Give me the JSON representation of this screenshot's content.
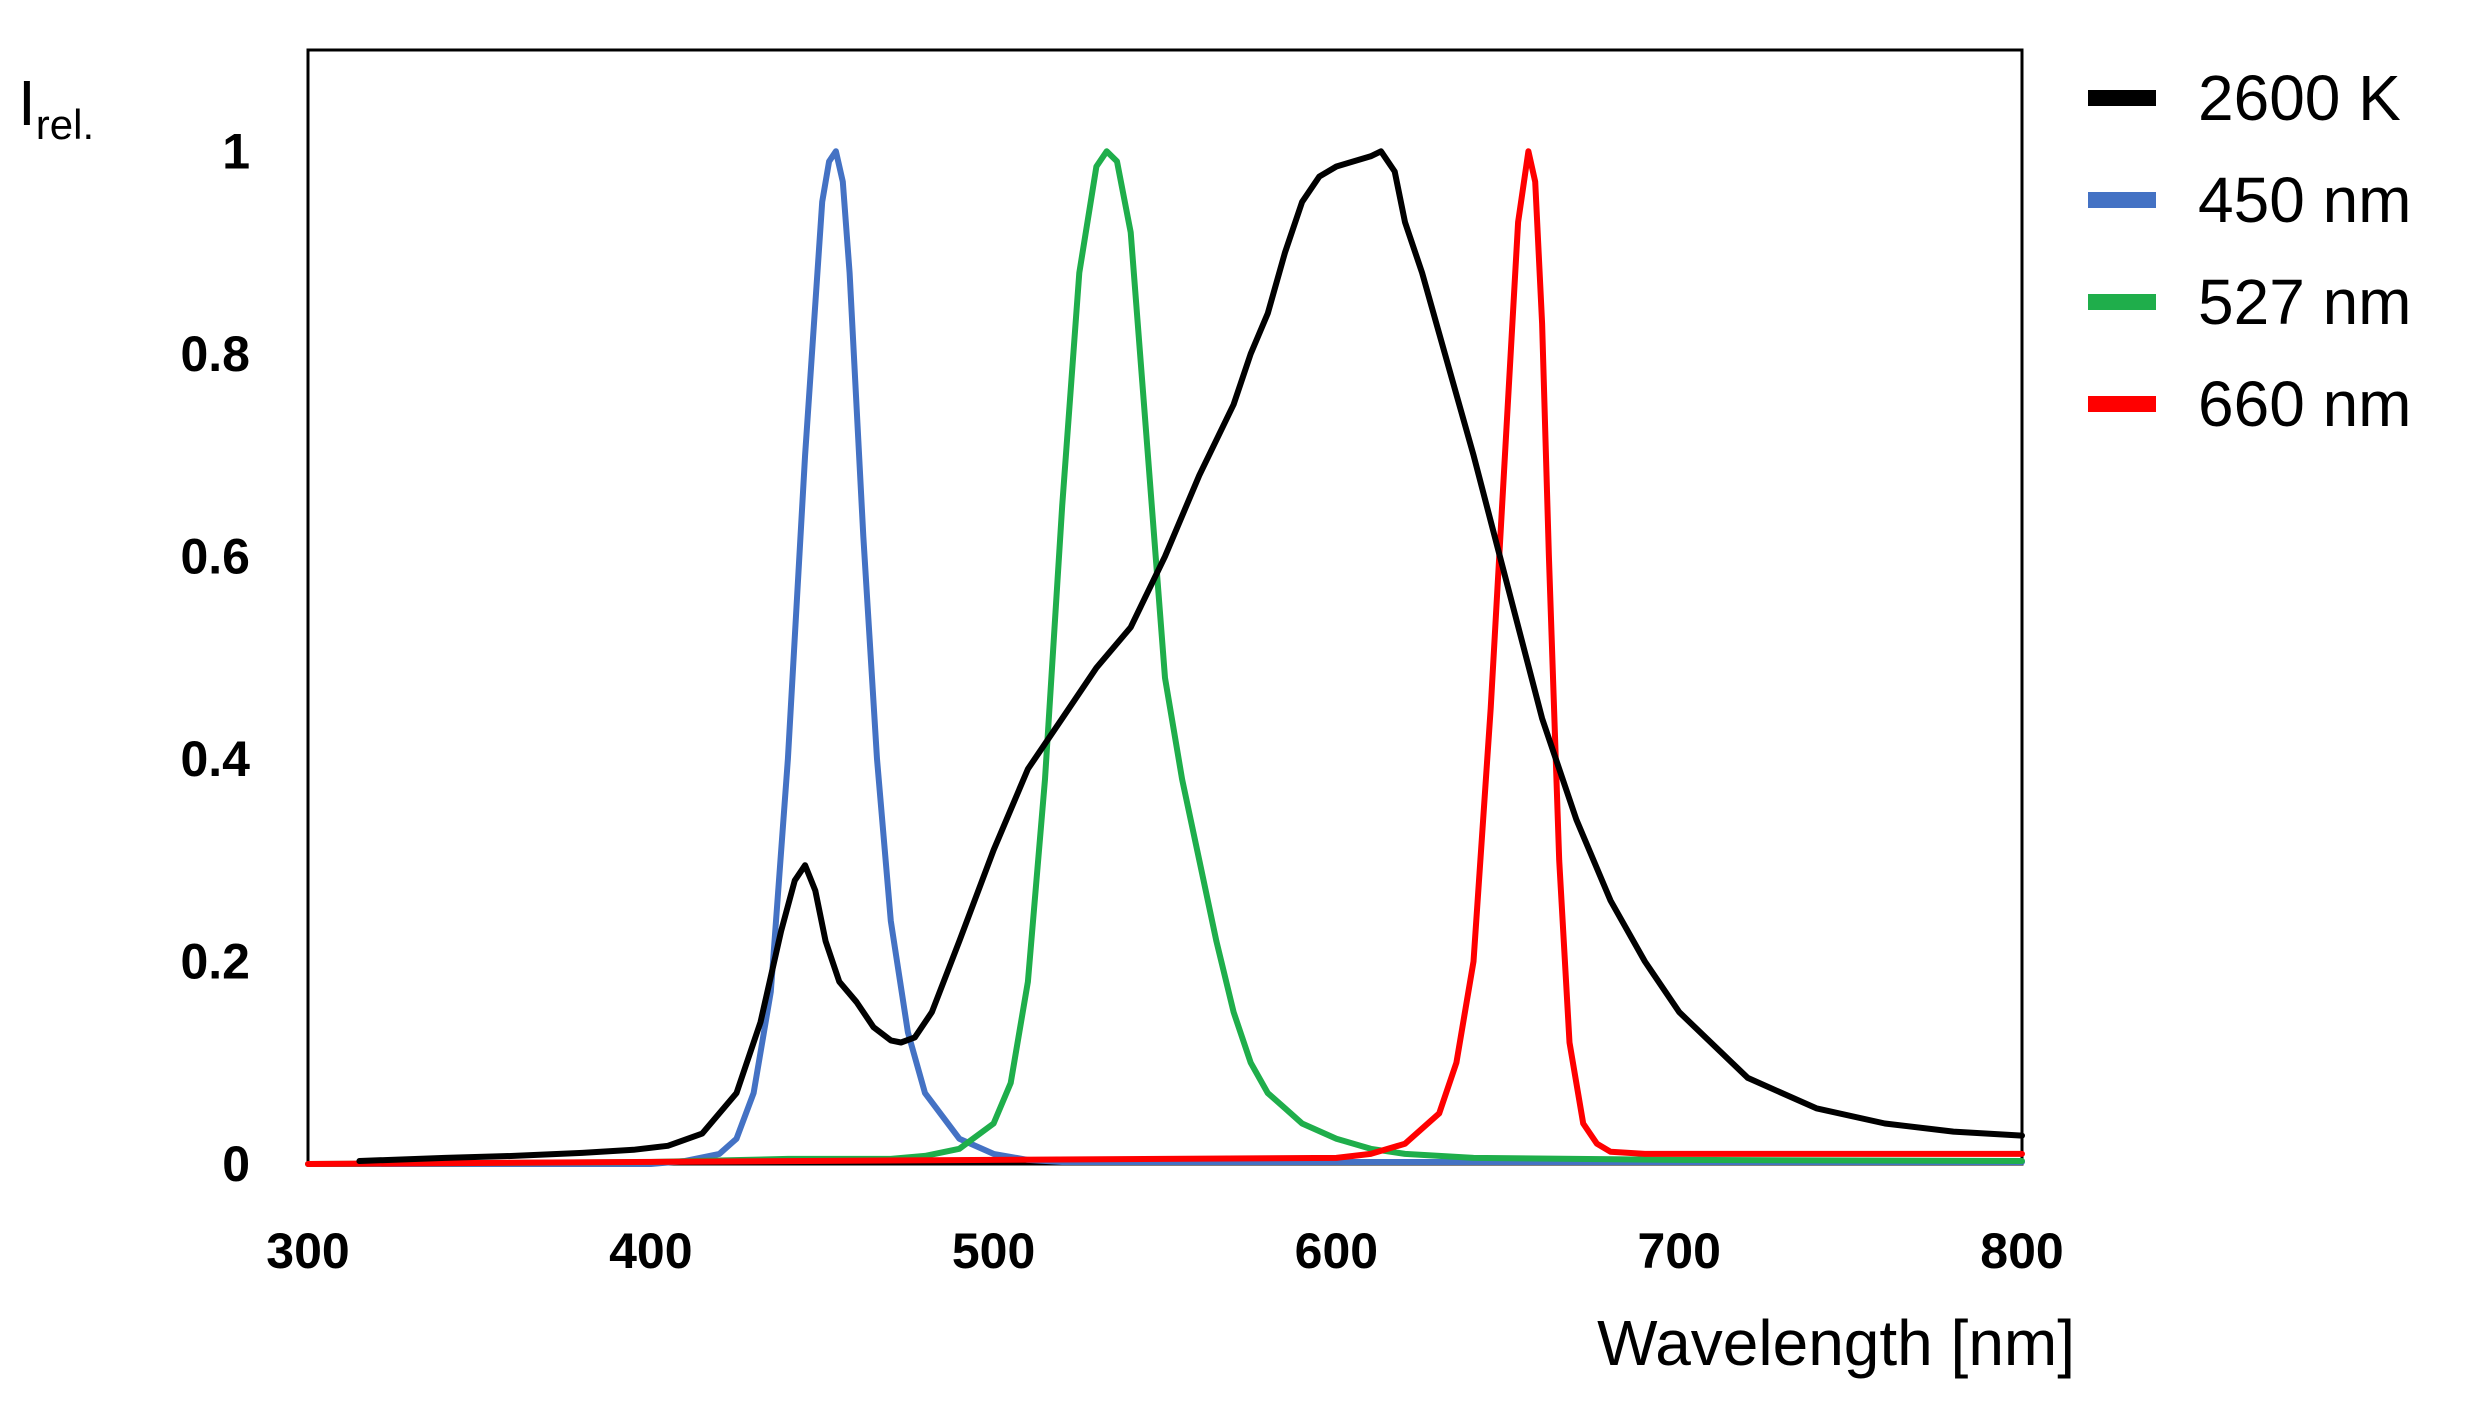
{
  "chart_data": {
    "type": "line",
    "title": "",
    "xlabel": "Wavelength [nm]",
    "ylabel": "I",
    "ylabel_sub": "rel.",
    "xlim": [
      300,
      800
    ],
    "ylim": [
      0,
      1.1
    ],
    "x_ticks": [
      300,
      400,
      500,
      600,
      700,
      800
    ],
    "y_ticks": [
      0,
      0.2,
      0.4,
      0.6,
      0.8,
      1
    ],
    "x_tick_labels": [
      "300",
      "400",
      "500",
      "600",
      "700",
      "800"
    ],
    "y_tick_labels": [
      "0",
      "0.2",
      "0.4",
      "0.6",
      "0.8",
      "1"
    ],
    "grid": false,
    "legend_position": "right",
    "series": [
      {
        "name": "2600 K",
        "color": "#000000",
        "x": [
          315,
          340,
          360,
          380,
          395,
          405,
          415,
          425,
          432,
          438,
          442,
          445,
          448,
          451,
          455,
          460,
          465,
          470,
          473,
          477,
          482,
          490,
          500,
          510,
          520,
          530,
          540,
          550,
          560,
          570,
          575,
          580,
          585,
          590,
          595,
          600,
          605,
          610,
          613,
          617,
          620,
          625,
          630,
          640,
          650,
          660,
          670,
          680,
          690,
          700,
          720,
          740,
          760,
          780,
          800
        ],
        "values": [
          0.003,
          0.006,
          0.008,
          0.011,
          0.014,
          0.018,
          0.03,
          0.07,
          0.14,
          0.23,
          0.28,
          0.295,
          0.27,
          0.22,
          0.18,
          0.16,
          0.135,
          0.122,
          0.12,
          0.125,
          0.15,
          0.22,
          0.31,
          0.39,
          0.44,
          0.49,
          0.53,
          0.6,
          0.68,
          0.75,
          0.8,
          0.84,
          0.9,
          0.95,
          0.975,
          0.985,
          0.99,
          0.995,
          1.0,
          0.98,
          0.93,
          0.88,
          0.82,
          0.7,
          0.57,
          0.44,
          0.34,
          0.26,
          0.2,
          0.15,
          0.085,
          0.055,
          0.04,
          0.032,
          0.028
        ]
      },
      {
        "name": "450 nm",
        "color": "#4472C4",
        "x": [
          300,
          400,
          410,
          420,
          425,
          430,
          435,
          440,
          445,
          450,
          452,
          454,
          456,
          458,
          462,
          466,
          470,
          475,
          480,
          490,
          500,
          510,
          520,
          800
        ],
        "values": [
          0,
          0,
          0.003,
          0.01,
          0.025,
          0.07,
          0.17,
          0.4,
          0.7,
          0.95,
          0.99,
          1.0,
          0.97,
          0.88,
          0.62,
          0.4,
          0.24,
          0.13,
          0.07,
          0.025,
          0.01,
          0.004,
          0.002,
          0.002
        ]
      },
      {
        "name": "527 nm",
        "color": "#1FAE4B",
        "x": [
          300,
          400,
          440,
          470,
          480,
          490,
          500,
          505,
          510,
          515,
          520,
          525,
          530,
          533,
          536,
          540,
          545,
          550,
          555,
          560,
          565,
          570,
          575,
          580,
          585,
          590,
          600,
          610,
          620,
          640,
          700,
          800
        ],
        "values": [
          0,
          0.002,
          0.005,
          0.005,
          0.008,
          0.015,
          0.04,
          0.08,
          0.18,
          0.38,
          0.65,
          0.88,
          0.985,
          1.0,
          0.99,
          0.92,
          0.7,
          0.48,
          0.38,
          0.3,
          0.22,
          0.15,
          0.1,
          0.07,
          0.055,
          0.04,
          0.025,
          0.015,
          0.01,
          0.006,
          0.004,
          0.003
        ]
      },
      {
        "name": "660 nm",
        "color": "#FF0000",
        "x": [
          300,
          500,
          600,
          610,
          620,
          630,
          635,
          640,
          645,
          650,
          653,
          656,
          658,
          660,
          662,
          665,
          668,
          672,
          676,
          680,
          690,
          700,
          800
        ],
        "values": [
          0,
          0.004,
          0.006,
          0.01,
          0.02,
          0.05,
          0.1,
          0.2,
          0.45,
          0.75,
          0.93,
          1.0,
          0.97,
          0.83,
          0.6,
          0.3,
          0.12,
          0.04,
          0.02,
          0.012,
          0.01,
          0.01,
          0.01
        ]
      }
    ]
  }
}
